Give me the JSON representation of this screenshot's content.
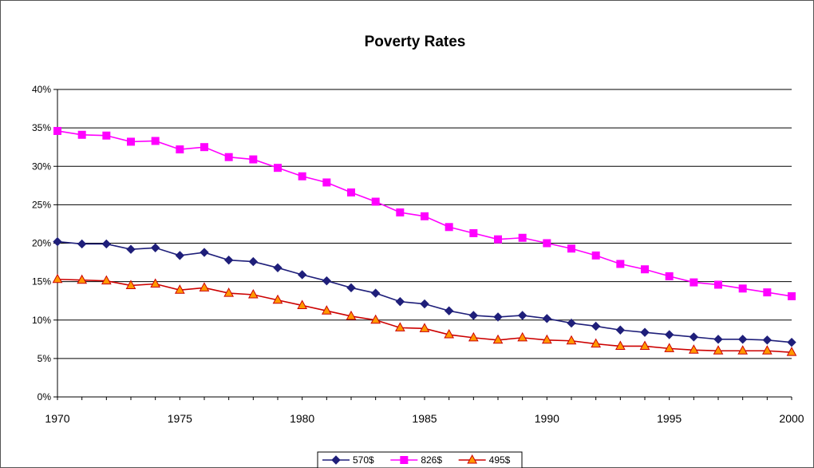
{
  "chart_data": {
    "type": "line",
    "title": "Poverty Rates",
    "xlabel": "",
    "ylabel": "",
    "x": [
      1970,
      1971,
      1972,
      1973,
      1974,
      1975,
      1976,
      1977,
      1978,
      1979,
      1980,
      1981,
      1982,
      1983,
      1984,
      1985,
      1986,
      1987,
      1988,
      1989,
      1990,
      1991,
      1992,
      1993,
      1994,
      1995,
      1996,
      1997,
      1998,
      1999,
      2000
    ],
    "xlim": [
      1970,
      2000
    ],
    "ylim": [
      0,
      0.4
    ],
    "xtick_labels": [
      "1970",
      "1975",
      "1980",
      "1985",
      "1990",
      "1995",
      "2000"
    ],
    "ytick_labels": [
      "0%",
      "5%",
      "10%",
      "15%",
      "20%",
      "25%",
      "30%",
      "35%",
      "40%"
    ],
    "grid": "horizontal",
    "legend_position": "bottom",
    "series": [
      {
        "name": "570$",
        "color": "#1f1f7a",
        "marker": "diamond",
        "values": [
          0.202,
          0.199,
          0.199,
          0.192,
          0.194,
          0.184,
          0.188,
          0.178,
          0.176,
          0.168,
          0.159,
          0.151,
          0.142,
          0.135,
          0.124,
          0.121,
          0.112,
          0.106,
          0.104,
          0.106,
          0.102,
          0.096,
          0.092,
          0.087,
          0.084,
          0.081,
          0.078,
          0.075,
          0.075,
          0.074,
          0.071
        ]
      },
      {
        "name": "826$",
        "color": "#ff00ff",
        "marker": "square",
        "values": [
          0.346,
          0.341,
          0.34,
          0.332,
          0.333,
          0.322,
          0.325,
          0.312,
          0.309,
          0.298,
          0.287,
          0.279,
          0.266,
          0.254,
          0.24,
          0.235,
          0.221,
          0.213,
          0.205,
          0.207,
          0.2,
          0.193,
          0.184,
          0.173,
          0.166,
          0.157,
          0.149,
          0.146,
          0.141,
          0.136,
          0.131
        ]
      },
      {
        "name": "495$",
        "color": "#ff9900",
        "line_color": "#cc0000",
        "marker": "triangle",
        "values": [
          0.153,
          0.152,
          0.151,
          0.145,
          0.147,
          0.139,
          0.142,
          0.135,
          0.133,
          0.126,
          0.119,
          0.112,
          0.105,
          0.1,
          0.09,
          0.089,
          0.081,
          0.077,
          0.074,
          0.077,
          0.074,
          0.073,
          0.069,
          0.066,
          0.066,
          0.063,
          0.061,
          0.06,
          0.06,
          0.06,
          0.058
        ]
      }
    ]
  }
}
